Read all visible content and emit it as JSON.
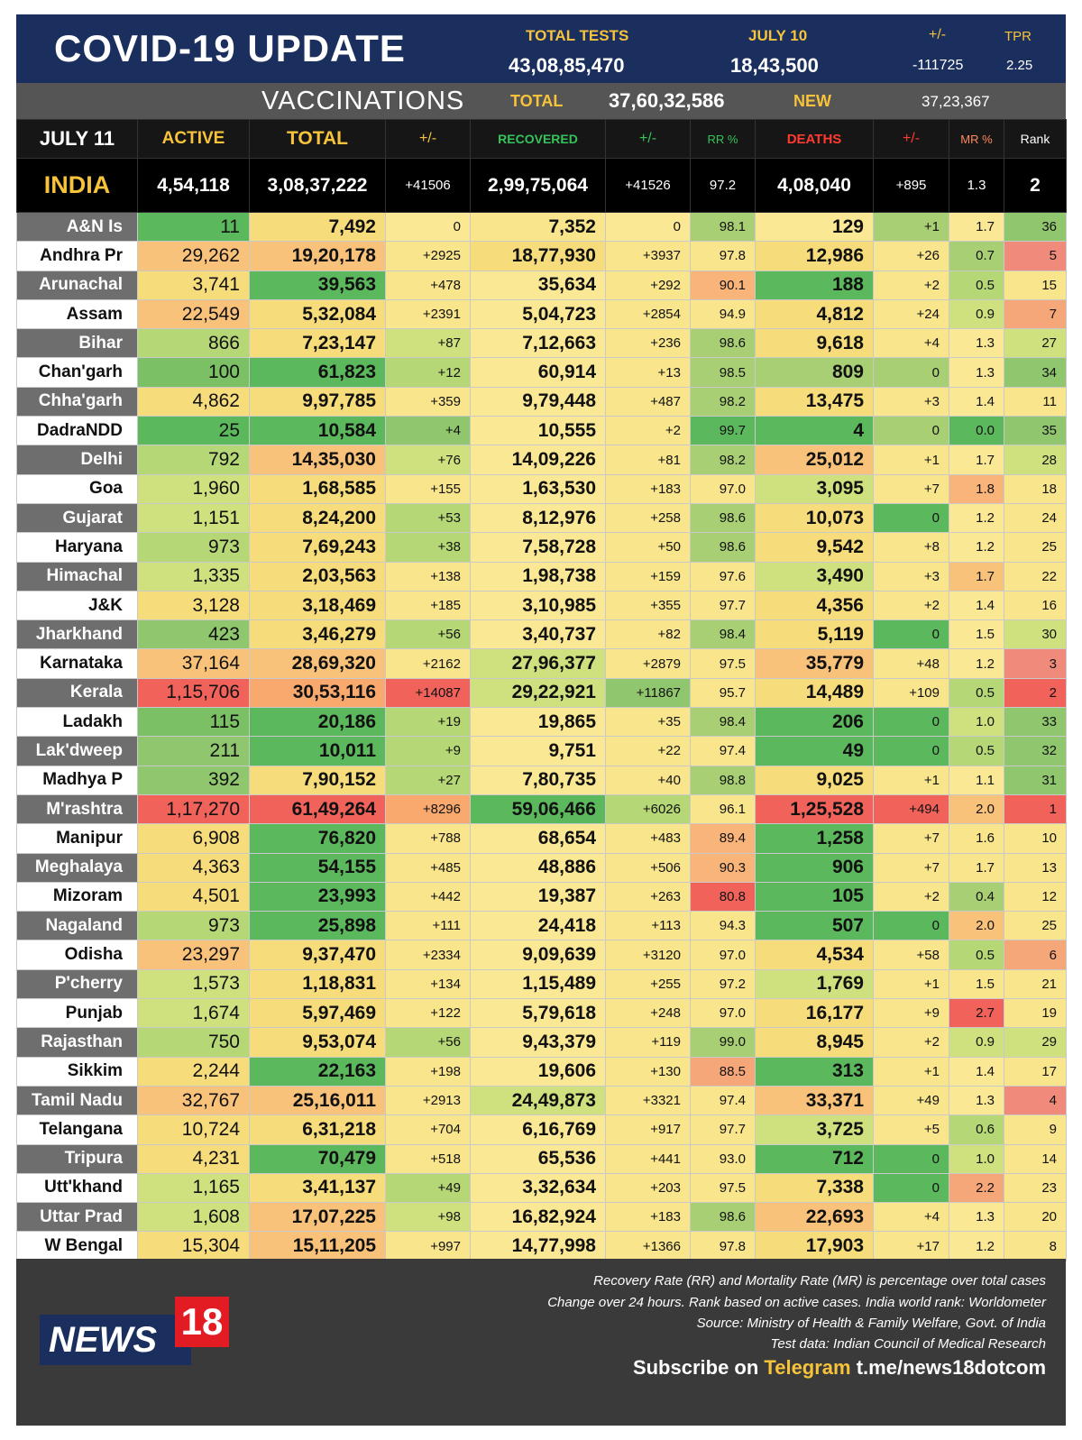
{
  "header": {
    "title": "COVID-19 UPDATE",
    "total_tests_label": "TOTAL TESTS",
    "total_tests": "43,08,85,470",
    "date_label": "JULY 10",
    "date_tests": "18,43,500",
    "change_label": "+/-",
    "change": "-111725",
    "tpr_label": "TPR",
    "tpr": "2.25"
  },
  "vaccinations": {
    "title": "VACCINATIONS",
    "total_label": "TOTAL",
    "total": "37,60,32,586",
    "new_label": "NEW",
    "new": "37,23,367"
  },
  "columns": {
    "date": "JULY 11",
    "active": "ACTIVE",
    "total": "TOTAL",
    "total_change": "+/-",
    "recovered": "RECOVERED",
    "recovered_change": "+/-",
    "rr": "RR %",
    "deaths": "DEATHS",
    "deaths_change": "+/-",
    "mr": "MR %",
    "rank": "Rank"
  },
  "india": {
    "name": "INDIA",
    "active": "4,54,118",
    "total": "3,08,37,222",
    "total_change": "+41506",
    "recovered": "2,99,75,064",
    "recovered_change": "+41526",
    "rr": "97.2",
    "deaths": "4,08,040",
    "deaths_change": "+895",
    "mr": "1.3",
    "rank": "2"
  },
  "rows": [
    {
      "state": "A&N Is",
      "active": "11",
      "total": "7,492",
      "total_change": "0",
      "recovered": "7,352",
      "recovered_change": "0",
      "rr": "98.1",
      "deaths": "129",
      "deaths_change": "+1",
      "mr": "1.7",
      "rank": "36",
      "c": [
        "#5cb85c",
        "#f6dc7a",
        "#fbe894",
        "#f8e58c",
        "#fbe894",
        "#a8cf74",
        "#fbe894",
        "#a8cf74",
        "#fbe894",
        "#90c66d"
      ]
    },
    {
      "state": "Andhra Pr",
      "active": "29,262",
      "total": "19,20,178",
      "total_change": "+2925",
      "recovered": "18,77,930",
      "recovered_change": "+3937",
      "rr": "97.8",
      "deaths": "12,986",
      "deaths_change": "+26",
      "mr": "0.7",
      "rank": "5",
      "c": [
        "#f9c27a",
        "#f9c27a",
        "#f8e58c",
        "#f6dc7a",
        "#f8e58c",
        "#f8e58c",
        "#f6dc7a",
        "#f8e58c",
        "#a8cf74",
        "#f08a7a"
      ]
    },
    {
      "state": "Arunachal",
      "active": "3,741",
      "total": "39,563",
      "total_change": "+478",
      "recovered": "35,634",
      "recovered_change": "+292",
      "rr": "90.1",
      "deaths": "188",
      "deaths_change": "+2",
      "mr": "0.5",
      "rank": "15",
      "c": [
        "#f6dc7a",
        "#5cb85c",
        "#f8e58c",
        "#fbe894",
        "#f8e58c",
        "#f9b47a",
        "#5cb85c",
        "#f8e58c",
        "#b6d776",
        "#f8e58c"
      ]
    },
    {
      "state": "Assam",
      "active": "22,549",
      "total": "5,32,084",
      "total_change": "+2391",
      "recovered": "5,04,723",
      "recovered_change": "+2854",
      "rr": "94.9",
      "deaths": "4,812",
      "deaths_change": "+24",
      "mr": "0.9",
      "rank": "7",
      "c": [
        "#f9c27a",
        "#f6dc7a",
        "#f8e58c",
        "#fbe894",
        "#f8e58c",
        "#f8e58c",
        "#f6dc7a",
        "#f8e58c",
        "#cfe07e",
        "#f6a77a"
      ]
    },
    {
      "state": "Bihar",
      "active": "866",
      "total": "7,23,147",
      "total_change": "+87",
      "recovered": "7,12,663",
      "recovered_change": "+236",
      "rr": "98.6",
      "deaths": "9,618",
      "deaths_change": "+4",
      "mr": "1.3",
      "rank": "27",
      "c": [
        "#b6d776",
        "#f6dc7a",
        "#cfe07e",
        "#fbe894",
        "#f8e58c",
        "#a8cf74",
        "#f6dc7a",
        "#f8e58c",
        "#fbe894",
        "#cfe07e"
      ]
    },
    {
      "state": "Chan'garh",
      "active": "100",
      "total": "61,823",
      "total_change": "+12",
      "recovered": "60,914",
      "recovered_change": "+13",
      "rr": "98.5",
      "deaths": "809",
      "deaths_change": "0",
      "mr": "1.3",
      "rank": "34",
      "c": [
        "#7bc064",
        "#5cb85c",
        "#b6d776",
        "#fbe894",
        "#f8e58c",
        "#a8cf74",
        "#a8cf74",
        "#a8cf74",
        "#fbe894",
        "#90c66d"
      ]
    },
    {
      "state": "Chha'garh",
      "active": "4,862",
      "total": "9,97,785",
      "total_change": "+359",
      "recovered": "9,79,448",
      "recovered_change": "+487",
      "rr": "98.2",
      "deaths": "13,475",
      "deaths_change": "+3",
      "mr": "1.4",
      "rank": "11",
      "c": [
        "#f6dc7a",
        "#f6dc7a",
        "#f8e58c",
        "#fbe894",
        "#f8e58c",
        "#a8cf74",
        "#f6dc7a",
        "#f8e58c",
        "#fbe894",
        "#f8e58c"
      ]
    },
    {
      "state": "DadraNDD",
      "active": "25",
      "total": "10,584",
      "total_change": "+4",
      "recovered": "10,555",
      "recovered_change": "+2",
      "rr": "99.7",
      "deaths": "4",
      "deaths_change": "0",
      "mr": "0.0",
      "rank": "35",
      "c": [
        "#5cb85c",
        "#5cb85c",
        "#90c66d",
        "#fbe894",
        "#f8e58c",
        "#5cb85c",
        "#5cb85c",
        "#a8cf74",
        "#5cb85c",
        "#90c66d"
      ]
    },
    {
      "state": "Delhi",
      "active": "792",
      "total": "14,35,030",
      "total_change": "+76",
      "recovered": "14,09,226",
      "recovered_change": "+81",
      "rr": "98.2",
      "deaths": "25,012",
      "deaths_change": "+1",
      "mr": "1.7",
      "rank": "28",
      "c": [
        "#b6d776",
        "#f9c27a",
        "#cfe07e",
        "#fbe894",
        "#f8e58c",
        "#a8cf74",
        "#f9c27a",
        "#f8e58c",
        "#fbe894",
        "#cfe07e"
      ]
    },
    {
      "state": "Goa",
      "active": "1,960",
      "total": "1,68,585",
      "total_change": "+155",
      "recovered": "1,63,530",
      "recovered_change": "+183",
      "rr": "97.0",
      "deaths": "3,095",
      "deaths_change": "+7",
      "mr": "1.8",
      "rank": "18",
      "c": [
        "#cfe07e",
        "#f6dc7a",
        "#f8e58c",
        "#fbe894",
        "#f8e58c",
        "#f8e58c",
        "#cfe07e",
        "#f8e58c",
        "#f9b47a",
        "#f8e58c"
      ]
    },
    {
      "state": "Gujarat",
      "active": "1,151",
      "total": "8,24,200",
      "total_change": "+53",
      "recovered": "8,12,976",
      "recovered_change": "+258",
      "rr": "98.6",
      "deaths": "10,073",
      "deaths_change": "0",
      "mr": "1.2",
      "rank": "24",
      "c": [
        "#cfe07e",
        "#f6dc7a",
        "#b6d776",
        "#fbe894",
        "#f8e58c",
        "#a8cf74",
        "#f6dc7a",
        "#5cb85c",
        "#fbe894",
        "#f8e58c"
      ]
    },
    {
      "state": "Haryana",
      "active": "973",
      "total": "7,69,243",
      "total_change": "+38",
      "recovered": "7,58,728",
      "recovered_change": "+50",
      "rr": "98.6",
      "deaths": "9,542",
      "deaths_change": "+8",
      "mr": "1.2",
      "rank": "25",
      "c": [
        "#b6d776",
        "#f6dc7a",
        "#b6d776",
        "#fbe894",
        "#f8e58c",
        "#a8cf74",
        "#f6dc7a",
        "#f8e58c",
        "#fbe894",
        "#f8e58c"
      ]
    },
    {
      "state": "Himachal",
      "active": "1,335",
      "total": "2,03,563",
      "total_change": "+138",
      "recovered": "1,98,738",
      "recovered_change": "+159",
      "rr": "97.6",
      "deaths": "3,490",
      "deaths_change": "+3",
      "mr": "1.7",
      "rank": "22",
      "c": [
        "#cfe07e",
        "#f6dc7a",
        "#f8e58c",
        "#fbe894",
        "#f8e58c",
        "#f8e58c",
        "#cfe07e",
        "#f8e58c",
        "#f9c27a",
        "#f8e58c"
      ]
    },
    {
      "state": "J&K",
      "active": "3,128",
      "total": "3,18,469",
      "total_change": "+185",
      "recovered": "3,10,985",
      "recovered_change": "+355",
      "rr": "97.7",
      "deaths": "4,356",
      "deaths_change": "+2",
      "mr": "1.4",
      "rank": "16",
      "c": [
        "#f6dc7a",
        "#f6dc7a",
        "#f8e58c",
        "#fbe894",
        "#f8e58c",
        "#f8e58c",
        "#f6dc7a",
        "#f8e58c",
        "#fbe894",
        "#f8e58c"
      ]
    },
    {
      "state": "Jharkhand",
      "active": "423",
      "total": "3,46,279",
      "total_change": "+56",
      "recovered": "3,40,737",
      "recovered_change": "+82",
      "rr": "98.4",
      "deaths": "5,119",
      "deaths_change": "0",
      "mr": "1.5",
      "rank": "30",
      "c": [
        "#90c66d",
        "#f6dc7a",
        "#b6d776",
        "#fbe894",
        "#f8e58c",
        "#a8cf74",
        "#f6dc7a",
        "#5cb85c",
        "#fbe894",
        "#cfe07e"
      ]
    },
    {
      "state": "Karnataka",
      "active": "37,164",
      "total": "28,69,320",
      "total_change": "+2162",
      "recovered": "27,96,377",
      "recovered_change": "+2879",
      "rr": "97.5",
      "deaths": "35,779",
      "deaths_change": "+48",
      "mr": "1.2",
      "rank": "3",
      "c": [
        "#f9c27a",
        "#f9c27a",
        "#f8e58c",
        "#cfe07e",
        "#f8e58c",
        "#f8e58c",
        "#f9c27a",
        "#f8e58c",
        "#fbe894",
        "#f08a7a"
      ]
    },
    {
      "state": "Kerala",
      "active": "1,15,706",
      "total": "30,53,116",
      "total_change": "+14087",
      "recovered": "29,22,921",
      "recovered_change": "+11867",
      "rr": "95.7",
      "deaths": "14,489",
      "deaths_change": "+109",
      "mr": "0.5",
      "rank": "2",
      "c": [
        "#f0625a",
        "#f9a86e",
        "#f0625a",
        "#cfe07e",
        "#90c66d",
        "#f8e58c",
        "#f6dc7a",
        "#f8e58c",
        "#b6d776",
        "#f0625a"
      ]
    },
    {
      "state": "Ladakh",
      "active": "115",
      "total": "20,186",
      "total_change": "+19",
      "recovered": "19,865",
      "recovered_change": "+35",
      "rr": "98.4",
      "deaths": "206",
      "deaths_change": "0",
      "mr": "1.0",
      "rank": "33",
      "c": [
        "#7bc064",
        "#5cb85c",
        "#b6d776",
        "#fbe894",
        "#f8e58c",
        "#a8cf74",
        "#5cb85c",
        "#5cb85c",
        "#cfe07e",
        "#90c66d"
      ]
    },
    {
      "state": "Lak'dweep",
      "active": "211",
      "total": "10,011",
      "total_change": "+9",
      "recovered": "9,751",
      "recovered_change": "+22",
      "rr": "97.4",
      "deaths": "49",
      "deaths_change": "0",
      "mr": "0.5",
      "rank": "32",
      "c": [
        "#90c66d",
        "#5cb85c",
        "#b6d776",
        "#fbe894",
        "#f8e58c",
        "#f8e58c",
        "#5cb85c",
        "#5cb85c",
        "#b6d776",
        "#90c66d"
      ]
    },
    {
      "state": "Madhya P",
      "active": "392",
      "total": "7,90,152",
      "total_change": "+27",
      "recovered": "7,80,735",
      "recovered_change": "+40",
      "rr": "98.8",
      "deaths": "9,025",
      "deaths_change": "+1",
      "mr": "1.1",
      "rank": "31",
      "c": [
        "#90c66d",
        "#f6dc7a",
        "#b6d776",
        "#fbe894",
        "#f8e58c",
        "#a8cf74",
        "#f6dc7a",
        "#f8e58c",
        "#fbe894",
        "#90c66d"
      ]
    },
    {
      "state": "M'rashtra",
      "active": "1,17,270",
      "total": "61,49,264",
      "total_change": "+8296",
      "recovered": "59,06,466",
      "recovered_change": "+6026",
      "rr": "96.1",
      "deaths": "1,25,528",
      "deaths_change": "+494",
      "mr": "2.0",
      "rank": "1",
      "c": [
        "#f0625a",
        "#f0625a",
        "#f9a86e",
        "#5cb85c",
        "#b6d776",
        "#f8e58c",
        "#f0625a",
        "#f0625a",
        "#f9c27a",
        "#f0625a"
      ]
    },
    {
      "state": "Manipur",
      "active": "6,908",
      "total": "76,820",
      "total_change": "+788",
      "recovered": "68,654",
      "recovered_change": "+483",
      "rr": "89.4",
      "deaths": "1,258",
      "deaths_change": "+7",
      "mr": "1.6",
      "rank": "10",
      "c": [
        "#f6dc7a",
        "#5cb85c",
        "#f8e58c",
        "#fbe894",
        "#f8e58c",
        "#f9b47a",
        "#5cb85c",
        "#f8e58c",
        "#f8e58c",
        "#f8e58c"
      ]
    },
    {
      "state": "Meghalaya",
      "active": "4,363",
      "total": "54,155",
      "total_change": "+485",
      "recovered": "48,886",
      "recovered_change": "+506",
      "rr": "90.3",
      "deaths": "906",
      "deaths_change": "+7",
      "mr": "1.7",
      "rank": "13",
      "c": [
        "#f6dc7a",
        "#5cb85c",
        "#f8e58c",
        "#fbe894",
        "#f8e58c",
        "#f9b47a",
        "#5cb85c",
        "#f8e58c",
        "#f8e58c",
        "#f8e58c"
      ]
    },
    {
      "state": "Mizoram",
      "active": "4,501",
      "total": "23,993",
      "total_change": "+442",
      "recovered": "19,387",
      "recovered_change": "+263",
      "rr": "80.8",
      "deaths": "105",
      "deaths_change": "+2",
      "mr": "0.4",
      "rank": "12",
      "c": [
        "#f6dc7a",
        "#5cb85c",
        "#f8e58c",
        "#fbe894",
        "#f8e58c",
        "#f0625a",
        "#5cb85c",
        "#f8e58c",
        "#a8cf74",
        "#f8e58c"
      ]
    },
    {
      "state": "Nagaland",
      "active": "973",
      "total": "25,898",
      "total_change": "+111",
      "recovered": "24,418",
      "recovered_change": "+113",
      "rr": "94.3",
      "deaths": "507",
      "deaths_change": "0",
      "mr": "2.0",
      "rank": "25",
      "c": [
        "#b6d776",
        "#5cb85c",
        "#f8e58c",
        "#fbe894",
        "#f8e58c",
        "#f8e58c",
        "#5cb85c",
        "#5cb85c",
        "#f9c27a",
        "#f8e58c"
      ]
    },
    {
      "state": "Odisha",
      "active": "23,297",
      "total": "9,37,470",
      "total_change": "+2334",
      "recovered": "9,09,639",
      "recovered_change": "+3120",
      "rr": "97.0",
      "deaths": "4,534",
      "deaths_change": "+58",
      "mr": "0.5",
      "rank": "6",
      "c": [
        "#f9c27a",
        "#f6dc7a",
        "#f8e58c",
        "#fbe894",
        "#f8e58c",
        "#f8e58c",
        "#f6dc7a",
        "#f8e58c",
        "#b6d776",
        "#f6a77a"
      ]
    },
    {
      "state": "P'cherry",
      "active": "1,573",
      "total": "1,18,831",
      "total_change": "+134",
      "recovered": "1,15,489",
      "recovered_change": "+255",
      "rr": "97.2",
      "deaths": "1,769",
      "deaths_change": "+1",
      "mr": "1.5",
      "rank": "21",
      "c": [
        "#cfe07e",
        "#f6dc7a",
        "#f8e58c",
        "#fbe894",
        "#f8e58c",
        "#f8e58c",
        "#cfe07e",
        "#f8e58c",
        "#f8e58c",
        "#f8e58c"
      ]
    },
    {
      "state": "Punjab",
      "active": "1,674",
      "total": "5,97,469",
      "total_change": "+122",
      "recovered": "5,79,618",
      "recovered_change": "+248",
      "rr": "97.0",
      "deaths": "16,177",
      "deaths_change": "+9",
      "mr": "2.7",
      "rank": "19",
      "c": [
        "#cfe07e",
        "#f6dc7a",
        "#f8e58c",
        "#fbe894",
        "#f8e58c",
        "#f8e58c",
        "#f6dc7a",
        "#f8e58c",
        "#f0625a",
        "#f8e58c"
      ]
    },
    {
      "state": "Rajasthan",
      "active": "750",
      "total": "9,53,074",
      "total_change": "+56",
      "recovered": "9,43,379",
      "recovered_change": "+119",
      "rr": "99.0",
      "deaths": "8,945",
      "deaths_change": "+2",
      "mr": "0.9",
      "rank": "29",
      "c": [
        "#b6d776",
        "#f6dc7a",
        "#b6d776",
        "#fbe894",
        "#f8e58c",
        "#a8cf74",
        "#f6dc7a",
        "#f8e58c",
        "#cfe07e",
        "#cfe07e"
      ]
    },
    {
      "state": "Sikkim",
      "active": "2,244",
      "total": "22,163",
      "total_change": "+198",
      "recovered": "19,606",
      "recovered_change": "+130",
      "rr": "88.5",
      "deaths": "313",
      "deaths_change": "+1",
      "mr": "1.4",
      "rank": "17",
      "c": [
        "#f6dc7a",
        "#5cb85c",
        "#f8e58c",
        "#fbe894",
        "#f8e58c",
        "#f6a77a",
        "#5cb85c",
        "#f8e58c",
        "#fbe894",
        "#f8e58c"
      ]
    },
    {
      "state": "Tamil Nadu",
      "active": "32,767",
      "total": "25,16,011",
      "total_change": "+2913",
      "recovered": "24,49,873",
      "recovered_change": "+3321",
      "rr": "97.4",
      "deaths": "33,371",
      "deaths_change": "+49",
      "mr": "1.3",
      "rank": "4",
      "c": [
        "#f9c27a",
        "#f9c27a",
        "#f8e58c",
        "#cfe07e",
        "#f8e58c",
        "#f8e58c",
        "#f9c27a",
        "#f8e58c",
        "#fbe894",
        "#f08a7a"
      ]
    },
    {
      "state": "Telangana",
      "active": "10,724",
      "total": "6,31,218",
      "total_change": "+704",
      "recovered": "6,16,769",
      "recovered_change": "+917",
      "rr": "97.7",
      "deaths": "3,725",
      "deaths_change": "+5",
      "mr": "0.6",
      "rank": "9",
      "c": [
        "#f6dc7a",
        "#f6dc7a",
        "#f8e58c",
        "#fbe894",
        "#f8e58c",
        "#f8e58c",
        "#cfe07e",
        "#f8e58c",
        "#b6d776",
        "#f8e58c"
      ]
    },
    {
      "state": "Tripura",
      "active": "4,231",
      "total": "70,479",
      "total_change": "+518",
      "recovered": "65,536",
      "recovered_change": "+441",
      "rr": "93.0",
      "deaths": "712",
      "deaths_change": "0",
      "mr": "1.0",
      "rank": "14",
      "c": [
        "#f6dc7a",
        "#5cb85c",
        "#f8e58c",
        "#fbe894",
        "#f8e58c",
        "#f8e58c",
        "#5cb85c",
        "#5cb85c",
        "#cfe07e",
        "#f8e58c"
      ]
    },
    {
      "state": "Utt'khand",
      "active": "1,165",
      "total": "3,41,137",
      "total_change": "+49",
      "recovered": "3,32,634",
      "recovered_change": "+203",
      "rr": "97.5",
      "deaths": "7,338",
      "deaths_change": "0",
      "mr": "2.2",
      "rank": "23",
      "c": [
        "#cfe07e",
        "#f6dc7a",
        "#b6d776",
        "#fbe894",
        "#f8e58c",
        "#f8e58c",
        "#f6dc7a",
        "#5cb85c",
        "#f6a77a",
        "#f8e58c"
      ]
    },
    {
      "state": "Uttar Prad",
      "active": "1,608",
      "total": "17,07,225",
      "total_change": "+98",
      "recovered": "16,82,924",
      "recovered_change": "+183",
      "rr": "98.6",
      "deaths": "22,693",
      "deaths_change": "+4",
      "mr": "1.3",
      "rank": "20",
      "c": [
        "#cfe07e",
        "#f9c27a",
        "#cfe07e",
        "#fbe894",
        "#f8e58c",
        "#a8cf74",
        "#f9c27a",
        "#f8e58c",
        "#fbe894",
        "#f8e58c"
      ]
    },
    {
      "state": "W Bengal",
      "active": "15,304",
      "total": "15,11,205",
      "total_change": "+997",
      "recovered": "14,77,998",
      "recovered_change": "+1366",
      "rr": "97.8",
      "deaths": "17,903",
      "deaths_change": "+17",
      "mr": "1.2",
      "rank": "8",
      "c": [
        "#f6dc7a",
        "#f9c27a",
        "#f8e58c",
        "#fbe894",
        "#f8e58c",
        "#f8e58c",
        "#f6dc7a",
        "#f8e58c",
        "#fbe894",
        "#f8e58c"
      ]
    }
  ],
  "footer": {
    "note1": "Recovery Rate (RR) and Mortality Rate (MR) is percentage over total cases",
    "note2": "Change over 24 hours. Rank based on active cases. India world rank: Worldometer",
    "note3": "Source: Ministry of Health & Family Welfare, Govt. of India",
    "note4": "Test data: Indian Council of Medical Research",
    "subscribe_prefix": "Subscribe on ",
    "subscribe_platform": "Telegram",
    "subscribe_link": " t.me/news18dotcom",
    "logo_text": "NEWS",
    "logo_number": "18"
  },
  "colors": {
    "header_bg": "#1b2f5e",
    "accent_yellow": "#f6c33b",
    "recovered_green": "#34c45a",
    "deaths_red": "#ff3b30",
    "mr_orange": "#ff8a5c"
  }
}
